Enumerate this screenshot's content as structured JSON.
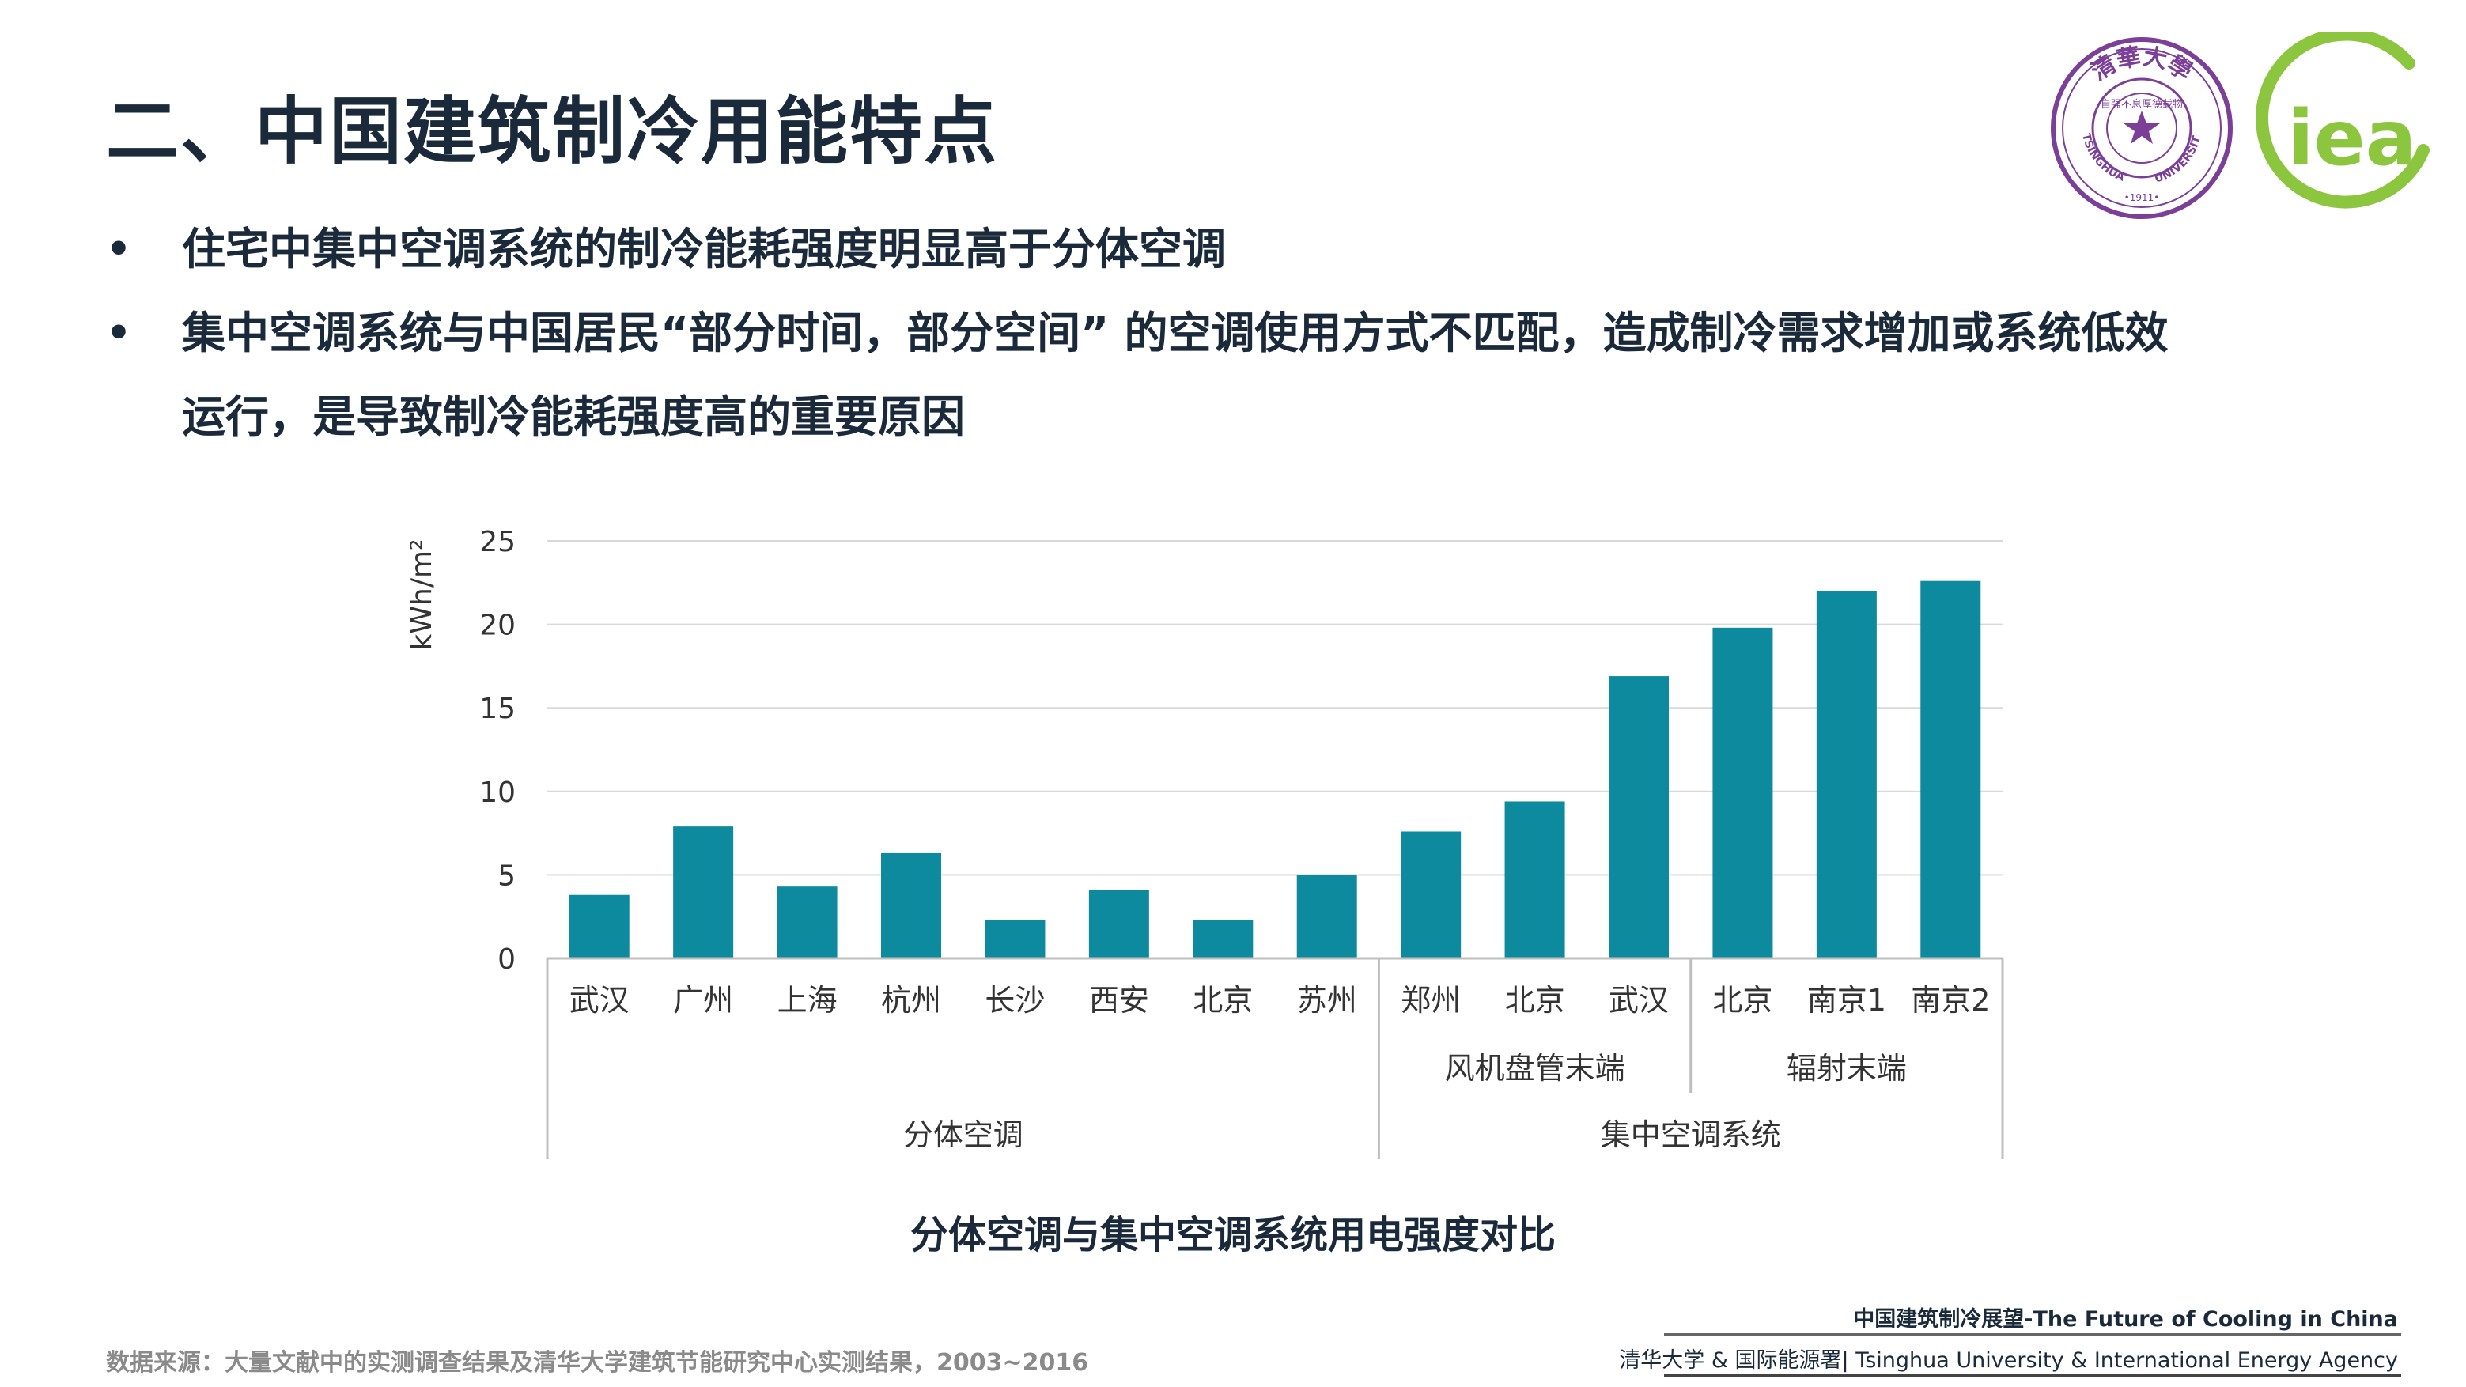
{
  "slide": {
    "title": "二、中国建筑制冷用能特点",
    "bullets": [
      {
        "line1": "住宅中集中空调系统的制冷能耗强度明显高于分体空调",
        "line2": ""
      },
      {
        "line1": "集中空调系统与中国居民“部分时间，部分空间” 的空调使用方式不匹配，造成制冷需求增加或系统低效",
        "line2": "运行，是导致制冷能耗强度高的重要原因"
      }
    ],
    "bullet_glyph": "•",
    "caption": "分体空调与集中空调系统用电强度对比",
    "source": "数据来源：大量文献中的实测调查结果及清华大学建筑节能研究中心实测结果，2003~2016",
    "footer_title": "中国建筑制冷展望-The Future of Cooling in China",
    "footer_org": "清华大学 & 国际能源署| Tsinghua University & International Energy Agency"
  },
  "logos": {
    "tsinghua": {
      "top_chars": "清華大學",
      "left_text": "TSINGHUA",
      "right_text": "UNIVERSITY",
      "year": "•1911•",
      "inner_chars": "自强不息厚德载物",
      "color": "#7b3f98"
    },
    "iea": {
      "text": "iea",
      "color": "#8cc63f"
    }
  },
  "chart_data": {
    "type": "bar",
    "ylabel": "kWh/m²",
    "ylim": [
      0,
      25
    ],
    "yticks": [
      0,
      5,
      10,
      15,
      20,
      25
    ],
    "grid": true,
    "bar_color": "#0e8a9e",
    "categories": [
      "武汉",
      "广州",
      "上海",
      "杭州",
      "长沙",
      "西安",
      "北京",
      "苏州",
      "郑州",
      "北京",
      "武汉",
      "北京",
      "南京1",
      "南京2"
    ],
    "values": [
      3.8,
      7.9,
      4.3,
      6.3,
      2.3,
      4.1,
      2.3,
      5.0,
      7.6,
      9.4,
      16.9,
      19.8,
      22.0,
      22.6
    ],
    "subgroups": [
      {
        "label": "风机盘管末端",
        "start": 8,
        "end": 10
      },
      {
        "label": "辐射末端",
        "start": 11,
        "end": 13
      }
    ],
    "groups": [
      {
        "label": "分体空调",
        "start": 0,
        "end": 7
      },
      {
        "label": "集中空调系统",
        "start": 8,
        "end": 13
      }
    ]
  }
}
